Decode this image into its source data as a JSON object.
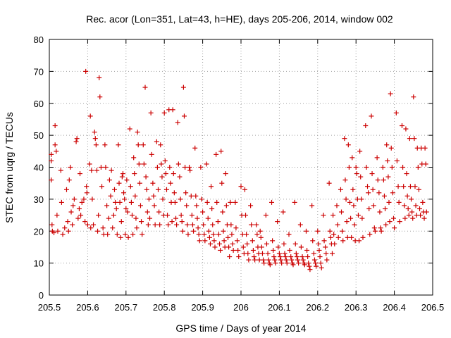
{
  "chart_data": {
    "type": "scatter",
    "title": "Rec. acor (Lon=351, Lat=43, h=HE), days 205-206, 2014, window 002",
    "xlabel": "GPS time / Days of year 2014",
    "ylabel": "STEC from uqrg / TECUs",
    "xlim": [
      205.5,
      206.5
    ],
    "ylim": [
      0,
      80
    ],
    "xticks": [
      "205.5",
      "205.6",
      "205.7",
      "205.8",
      "205.9",
      "206",
      "206.1",
      "206.2",
      "206.3",
      "206.4",
      "206.5"
    ],
    "yticks": [
      "0",
      "10",
      "20",
      "30",
      "40",
      "50",
      "60",
      "70",
      "80"
    ],
    "grid": true,
    "marker": "plus",
    "color": "#cc0000",
    "points": [
      [
        205.505,
        44
      ],
      [
        205.505,
        42
      ],
      [
        205.505,
        36
      ],
      [
        205.507,
        22
      ],
      [
        205.508,
        20
      ],
      [
        205.512,
        19.5
      ],
      [
        205.515,
        53
      ],
      [
        205.515,
        47
      ],
      [
        205.518,
        45
      ],
      [
        205.52,
        25
      ],
      [
        205.522,
        20
      ],
      [
        205.53,
        39
      ],
      [
        205.532,
        29
      ],
      [
        205.535,
        19
      ],
      [
        205.54,
        21
      ],
      [
        205.545,
        33
      ],
      [
        205.548,
        23
      ],
      [
        205.55,
        20
      ],
      [
        205.552,
        36
      ],
      [
        205.555,
        40
      ],
      [
        205.557,
        26
      ],
      [
        205.56,
        22
      ],
      [
        205.562,
        28
      ],
      [
        205.565,
        30
      ],
      [
        205.57,
        48
      ],
      [
        205.572,
        49
      ],
      [
        205.575,
        24
      ],
      [
        205.578,
        27
      ],
      [
        205.58,
        38
      ],
      [
        205.582,
        25
      ],
      [
        205.585,
        29
      ],
      [
        205.59,
        30
      ],
      [
        205.593,
        23
      ],
      [
        205.595,
        70
      ],
      [
        205.597,
        34
      ],
      [
        205.598,
        32
      ],
      [
        205.6,
        22
      ],
      [
        205.605,
        41
      ],
      [
        205.607,
        56
      ],
      [
        205.608,
        21
      ],
      [
        205.61,
        39
      ],
      [
        205.612,
        30
      ],
      [
        205.615,
        22
      ],
      [
        205.618,
        51
      ],
      [
        205.62,
        49
      ],
      [
        205.622,
        47
      ],
      [
        205.624,
        39
      ],
      [
        205.626,
        20
      ],
      [
        205.628,
        25
      ],
      [
        205.63,
        68
      ],
      [
        205.632,
        62
      ],
      [
        205.635,
        40
      ],
      [
        205.637,
        34
      ],
      [
        205.64,
        21
      ],
      [
        205.642,
        19
      ],
      [
        205.645,
        47
      ],
      [
        205.647,
        40
      ],
      [
        205.65,
        28
      ],
      [
        205.652,
        19
      ],
      [
        205.655,
        24
      ],
      [
        205.657,
        36
      ],
      [
        205.66,
        31
      ],
      [
        205.662,
        39
      ],
      [
        205.665,
        21
      ],
      [
        205.668,
        25
      ],
      [
        205.67,
        33
      ],
      [
        205.672,
        29
      ],
      [
        205.675,
        27
      ],
      [
        205.677,
        19
      ],
      [
        205.68,
        47
      ],
      [
        205.682,
        35
      ],
      [
        205.684,
        29
      ],
      [
        205.686,
        18
      ],
      [
        205.688,
        23
      ],
      [
        205.69,
        37
      ],
      [
        205.692,
        38
      ],
      [
        205.694,
        32
      ],
      [
        205.696,
        30
      ],
      [
        205.698,
        19
      ],
      [
        205.7,
        27
      ],
      [
        205.702,
        36
      ],
      [
        205.704,
        26
      ],
      [
        205.706,
        18
      ],
      [
        205.71,
        52
      ],
      [
        205.712,
        34
      ],
      [
        205.714,
        29
      ],
      [
        205.716,
        25
      ],
      [
        205.718,
        19
      ],
      [
        205.72,
        43
      ],
      [
        205.722,
        38
      ],
      [
        205.724,
        31
      ],
      [
        205.726,
        24
      ],
      [
        205.728,
        21
      ],
      [
        205.73,
        51
      ],
      [
        205.732,
        47
      ],
      [
        205.734,
        41
      ],
      [
        205.736,
        35
      ],
      [
        205.738,
        28
      ],
      [
        205.74,
        23
      ],
      [
        205.742,
        19
      ],
      [
        205.745,
        47
      ],
      [
        205.747,
        41
      ],
      [
        205.75,
        65
      ],
      [
        205.752,
        37
      ],
      [
        205.754,
        33
      ],
      [
        205.756,
        26
      ],
      [
        205.758,
        22
      ],
      [
        205.76,
        30
      ],
      [
        205.762,
        24
      ],
      [
        205.765,
        57
      ],
      [
        205.767,
        44
      ],
      [
        205.77,
        35
      ],
      [
        205.772,
        31
      ],
      [
        205.774,
        28
      ],
      [
        205.776,
        22
      ],
      [
        205.78,
        48
      ],
      [
        205.782,
        40
      ],
      [
        205.784,
        33
      ],
      [
        205.786,
        26
      ],
      [
        205.788,
        22
      ],
      [
        205.79,
        47
      ],
      [
        205.792,
        41
      ],
      [
        205.794,
        37
      ],
      [
        205.796,
        30
      ],
      [
        205.798,
        25
      ],
      [
        205.8,
        57
      ],
      [
        205.802,
        42
      ],
      [
        205.804,
        38
      ],
      [
        205.806,
        33
      ],
      [
        205.808,
        25
      ],
      [
        205.81,
        22
      ],
      [
        205.812,
        58
      ],
      [
        205.814,
        40
      ],
      [
        205.816,
        35
      ],
      [
        205.818,
        29
      ],
      [
        205.82,
        23
      ],
      [
        205.822,
        58
      ],
      [
        205.824,
        38
      ],
      [
        205.826,
        32
      ],
      [
        205.828,
        29
      ],
      [
        205.83,
        24
      ],
      [
        205.832,
        22
      ],
      [
        205.835,
        54
      ],
      [
        205.837,
        41
      ],
      [
        205.84,
        37
      ],
      [
        205.842,
        30
      ],
      [
        205.844,
        25
      ],
      [
        205.846,
        23
      ],
      [
        205.848,
        20
      ],
      [
        205.85,
        65
      ],
      [
        205.852,
        56
      ],
      [
        205.854,
        40
      ],
      [
        205.856,
        32
      ],
      [
        205.858,
        28
      ],
      [
        205.86,
        22
      ],
      [
        205.862,
        19
      ],
      [
        205.865,
        40
      ],
      [
        205.867,
        39
      ],
      [
        205.87,
        31
      ],
      [
        205.872,
        25
      ],
      [
        205.874,
        22
      ],
      [
        205.876,
        20
      ],
      [
        205.88,
        46
      ],
      [
        205.882,
        31
      ],
      [
        205.884,
        28
      ],
      [
        205.886,
        24
      ],
      [
        205.888,
        21
      ],
      [
        205.89,
        19
      ],
      [
        205.892,
        17
      ],
      [
        205.895,
        40
      ],
      [
        205.897,
        30
      ],
      [
        205.9,
        26
      ],
      [
        205.902,
        22
      ],
      [
        205.904,
        19
      ],
      [
        205.906,
        17
      ],
      [
        205.91,
        41
      ],
      [
        205.912,
        29
      ],
      [
        205.914,
        24
      ],
      [
        205.916,
        20
      ],
      [
        205.918,
        18
      ],
      [
        205.92,
        16
      ],
      [
        205.922,
        34
      ],
      [
        205.924,
        27
      ],
      [
        205.926,
        22
      ],
      [
        205.928,
        19
      ],
      [
        205.93,
        17
      ],
      [
        205.932,
        15
      ],
      [
        205.935,
        44
      ],
      [
        205.937,
        29
      ],
      [
        205.94,
        23
      ],
      [
        205.942,
        19
      ],
      [
        205.944,
        16
      ],
      [
        205.946,
        14
      ],
      [
        205.948,
        45
      ],
      [
        205.95,
        35
      ],
      [
        205.952,
        26
      ],
      [
        205.954,
        20
      ],
      [
        205.956,
        17
      ],
      [
        205.958,
        15
      ],
      [
        205.96,
        38
      ],
      [
        205.962,
        28
      ],
      [
        205.964,
        22
      ],
      [
        205.966,
        18
      ],
      [
        205.968,
        15
      ],
      [
        205.97,
        12
      ],
      [
        205.972,
        29
      ],
      [
        205.974,
        22
      ],
      [
        205.976,
        19
      ],
      [
        205.978,
        16
      ],
      [
        205.98,
        14
      ],
      [
        205.985,
        29
      ],
      [
        205.987,
        21
      ],
      [
        205.99,
        17
      ],
      [
        205.992,
        14
      ],
      [
        205.994,
        12
      ],
      [
        206.0,
        34
      ],
      [
        206.002,
        25
      ],
      [
        206.004,
        19
      ],
      [
        206.006,
        15
      ],
      [
        206.008,
        13
      ],
      [
        206.01,
        33
      ],
      [
        206.012,
        25
      ],
      [
        206.014,
        19
      ],
      [
        206.016,
        16
      ],
      [
        206.018,
        13
      ],
      [
        206.02,
        11
      ],
      [
        206.025,
        28
      ],
      [
        206.027,
        22
      ],
      [
        206.03,
        17
      ],
      [
        206.032,
        14
      ],
      [
        206.034,
        12
      ],
      [
        206.036,
        11
      ],
      [
        206.04,
        22
      ],
      [
        206.042,
        19
      ],
      [
        206.044,
        15
      ],
      [
        206.046,
        13
      ],
      [
        206.048,
        11
      ],
      [
        206.05,
        20
      ],
      [
        206.052,
        18
      ],
      [
        206.054,
        15
      ],
      [
        206.056,
        13
      ],
      [
        206.058,
        11
      ],
      [
        206.06,
        10
      ],
      [
        206.065,
        25
      ],
      [
        206.067,
        16
      ],
      [
        206.07,
        13
      ],
      [
        206.072,
        11
      ],
      [
        206.074,
        10
      ],
      [
        206.076,
        9.5
      ],
      [
        206.08,
        29
      ],
      [
        206.082,
        17
      ],
      [
        206.084,
        14
      ],
      [
        206.086,
        12
      ],
      [
        206.088,
        11
      ],
      [
        206.09,
        10
      ],
      [
        206.095,
        23
      ],
      [
        206.097,
        15
      ],
      [
        206.1,
        13
      ],
      [
        206.102,
        12
      ],
      [
        206.104,
        11
      ],
      [
        206.106,
        10
      ],
      [
        206.11,
        26
      ],
      [
        206.112,
        16
      ],
      [
        206.114,
        13
      ],
      [
        206.116,
        12
      ],
      [
        206.118,
        11
      ],
      [
        206.12,
        10
      ],
      [
        206.125,
        19
      ],
      [
        206.127,
        14
      ],
      [
        206.13,
        12
      ],
      [
        206.132,
        11
      ],
      [
        206.134,
        10
      ],
      [
        206.136,
        9.5
      ],
      [
        206.14,
        29
      ],
      [
        206.142,
        16
      ],
      [
        206.144,
        13
      ],
      [
        206.146,
        12
      ],
      [
        206.148,
        11
      ],
      [
        206.15,
        10
      ],
      [
        206.155,
        22
      ],
      [
        206.157,
        15
      ],
      [
        206.16,
        12
      ],
      [
        206.162,
        11
      ],
      [
        206.164,
        10
      ],
      [
        206.166,
        9.5
      ],
      [
        206.17,
        20
      ],
      [
        206.172,
        14
      ],
      [
        206.174,
        12
      ],
      [
        206.176,
        10
      ],
      [
        206.178,
        9
      ],
      [
        206.18,
        8
      ],
      [
        206.185,
        28
      ],
      [
        206.187,
        17
      ],
      [
        206.19,
        13
      ],
      [
        206.192,
        11
      ],
      [
        206.194,
        10
      ],
      [
        206.196,
        9
      ],
      [
        206.2,
        20
      ],
      [
        206.202,
        16
      ],
      [
        206.204,
        14
      ],
      [
        206.206,
        12
      ],
      [
        206.208,
        10
      ],
      [
        206.21,
        8.5
      ],
      [
        206.215,
        25
      ],
      [
        206.217,
        17
      ],
      [
        206.22,
        15
      ],
      [
        206.222,
        13
      ],
      [
        206.224,
        11
      ],
      [
        206.23,
        35
      ],
      [
        206.232,
        20
      ],
      [
        206.234,
        18
      ],
      [
        206.236,
        16
      ],
      [
        206.238,
        13
      ],
      [
        206.24,
        25
      ],
      [
        206.242,
        19
      ],
      [
        206.244,
        16
      ],
      [
        206.25,
        28
      ],
      [
        206.252,
        22
      ],
      [
        206.254,
        18
      ],
      [
        206.26,
        33
      ],
      [
        206.262,
        26
      ],
      [
        206.264,
        20
      ],
      [
        206.266,
        17
      ],
      [
        206.27,
        49
      ],
      [
        206.272,
        36
      ],
      [
        206.274,
        30
      ],
      [
        206.276,
        23
      ],
      [
        206.278,
        18
      ],
      [
        206.28,
        47
      ],
      [
        206.282,
        40
      ],
      [
        206.284,
        29
      ],
      [
        206.286,
        24
      ],
      [
        206.288,
        18
      ],
      [
        206.29,
        43
      ],
      [
        206.292,
        33
      ],
      [
        206.294,
        28
      ],
      [
        206.296,
        22
      ],
      [
        206.298,
        17
      ],
      [
        206.3,
        40
      ],
      [
        206.302,
        38
      ],
      [
        206.304,
        30
      ],
      [
        206.306,
        25
      ],
      [
        206.308,
        17
      ],
      [
        206.31,
        45
      ],
      [
        206.312,
        37
      ],
      [
        206.314,
        30
      ],
      [
        206.316,
        24
      ],
      [
        206.318,
        18
      ],
      [
        206.325,
        53
      ],
      [
        206.327,
        40
      ],
      [
        206.33,
        34
      ],
      [
        206.332,
        32
      ],
      [
        206.334,
        27
      ],
      [
        206.336,
        19
      ],
      [
        206.34,
        56
      ],
      [
        206.342,
        38
      ],
      [
        206.344,
        33
      ],
      [
        206.346,
        28
      ],
      [
        206.348,
        21
      ],
      [
        206.35,
        20
      ],
      [
        206.355,
        43
      ],
      [
        206.357,
        36
      ],
      [
        206.36,
        32
      ],
      [
        206.362,
        26
      ],
      [
        206.364,
        21
      ],
      [
        206.366,
        20
      ],
      [
        206.37,
        40
      ],
      [
        206.372,
        36
      ],
      [
        206.374,
        31
      ],
      [
        206.376,
        27
      ],
      [
        206.378,
        22
      ],
      [
        206.38,
        47
      ],
      [
        206.382,
        42
      ],
      [
        206.384,
        37
      ],
      [
        206.386,
        29
      ],
      [
        206.388,
        23
      ],
      [
        206.39,
        63
      ],
      [
        206.392,
        46
      ],
      [
        206.394,
        40
      ],
      [
        206.396,
        32
      ],
      [
        206.398,
        24
      ],
      [
        206.4,
        21
      ],
      [
        206.405,
        57
      ],
      [
        206.407,
        42
      ],
      [
        206.41,
        34
      ],
      [
        206.412,
        29
      ],
      [
        206.414,
        23
      ],
      [
        206.42,
        53
      ],
      [
        206.422,
        40
      ],
      [
        206.424,
        34
      ],
      [
        206.426,
        28
      ],
      [
        206.428,
        24
      ],
      [
        206.43,
        52
      ],
      [
        206.432,
        38
      ],
      [
        206.434,
        31
      ],
      [
        206.436,
        27
      ],
      [
        206.438,
        25
      ],
      [
        206.44,
        49
      ],
      [
        206.442,
        34
      ],
      [
        206.444,
        30
      ],
      [
        206.446,
        26
      ],
      [
        206.448,
        24
      ],
      [
        206.45,
        62
      ],
      [
        206.452,
        49
      ],
      [
        206.454,
        34
      ],
      [
        206.456,
        28
      ],
      [
        206.458,
        25
      ],
      [
        206.46,
        46
      ],
      [
        206.462,
        40
      ],
      [
        206.464,
        33
      ],
      [
        206.466,
        27
      ],
      [
        206.468,
        25
      ],
      [
        206.47,
        46
      ],
      [
        206.472,
        41
      ],
      [
        206.474,
        29
      ],
      [
        206.476,
        26
      ],
      [
        206.478,
        24
      ],
      [
        206.48,
        46
      ],
      [
        206.482,
        41
      ],
      [
        206.484,
        26
      ]
    ]
  }
}
